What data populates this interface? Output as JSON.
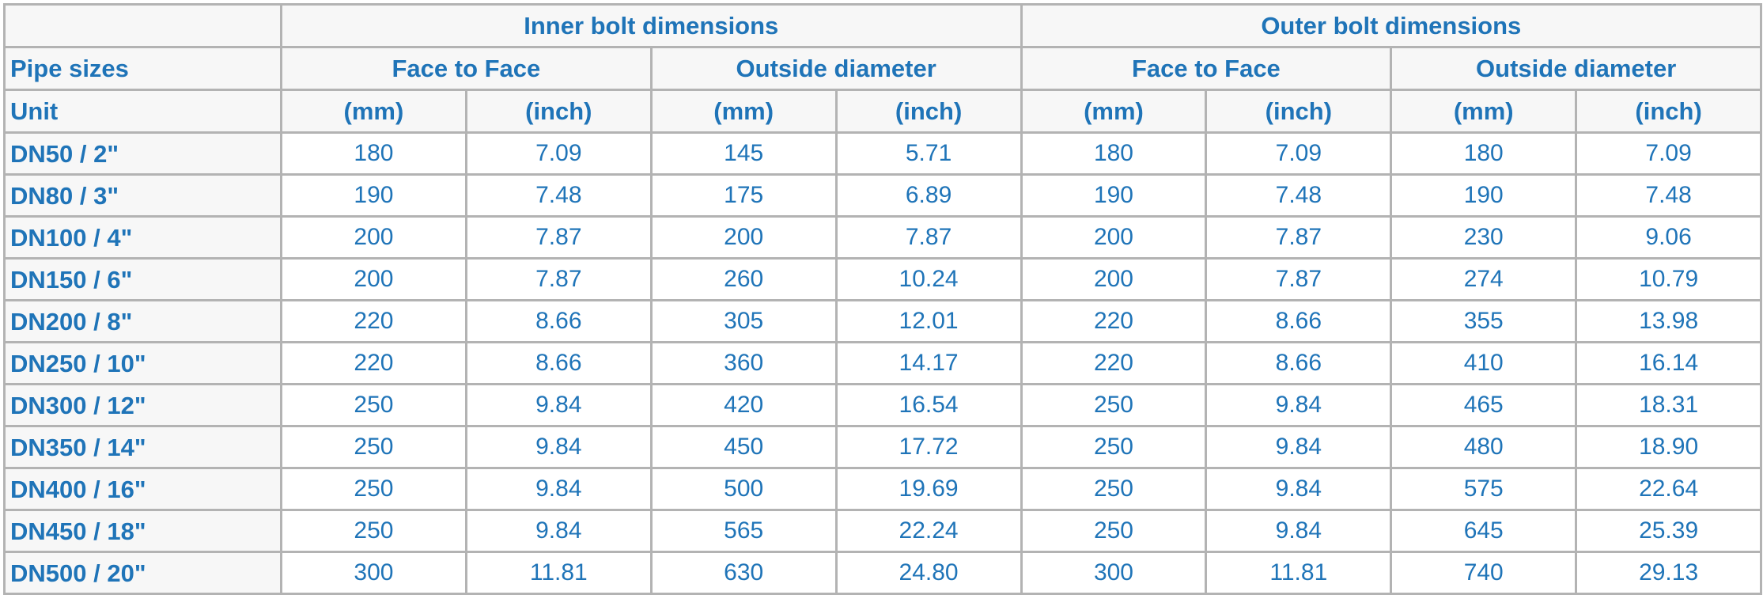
{
  "headers": {
    "corner": "",
    "inner_group": "Inner bolt dimensions",
    "outer_group": "Outer bolt dimensions",
    "pipe_sizes": "Pipe sizes",
    "face_to_face": "Face to Face",
    "outside_diameter": "Outside diameter",
    "unit": "Unit",
    "mm": "(mm)",
    "inch": "(inch)"
  },
  "rows": [
    {
      "size": "DN50 / 2\"",
      "v": [
        "180",
        "7.09",
        "145",
        "5.71",
        "180",
        "7.09",
        "180",
        "7.09"
      ]
    },
    {
      "size": "DN80 / 3\"",
      "v": [
        "190",
        "7.48",
        "175",
        "6.89",
        "190",
        "7.48",
        "190",
        "7.48"
      ]
    },
    {
      "size": "DN100 / 4\"",
      "v": [
        "200",
        "7.87",
        "200",
        "7.87",
        "200",
        "7.87",
        "230",
        "9.06"
      ]
    },
    {
      "size": "DN150 / 6\"",
      "v": [
        "200",
        "7.87",
        "260",
        "10.24",
        "200",
        "7.87",
        "274",
        "10.79"
      ]
    },
    {
      "size": "DN200 / 8\"",
      "v": [
        "220",
        "8.66",
        "305",
        "12.01",
        "220",
        "8.66",
        "355",
        "13.98"
      ]
    },
    {
      "size": "DN250 / 10\"",
      "v": [
        "220",
        "8.66",
        "360",
        "14.17",
        "220",
        "8.66",
        "410",
        "16.14"
      ]
    },
    {
      "size": "DN300 / 12\"",
      "v": [
        "250",
        "9.84",
        "420",
        "16.54",
        "250",
        "9.84",
        "465",
        "18.31"
      ]
    },
    {
      "size": "DN350 / 14\"",
      "v": [
        "250",
        "9.84",
        "450",
        "17.72",
        "250",
        "9.84",
        "480",
        "18.90"
      ]
    },
    {
      "size": "DN400 / 16\"",
      "v": [
        "250",
        "9.84",
        "500",
        "19.69",
        "250",
        "9.84",
        "575",
        "22.64"
      ]
    },
    {
      "size": "DN450 / 18\"",
      "v": [
        "250",
        "9.84",
        "565",
        "22.24",
        "250",
        "9.84",
        "645",
        "25.39"
      ]
    },
    {
      "size": "DN500 / 20\"",
      "v": [
        "300",
        "11.81",
        "630",
        "24.80",
        "300",
        "11.81",
        "740",
        "29.13"
      ]
    }
  ],
  "colors": {
    "text": "#1f74b8",
    "border": "#b3b3b3",
    "header_bg": "#f7f7f7",
    "cell_bg": "#ffffff"
  }
}
